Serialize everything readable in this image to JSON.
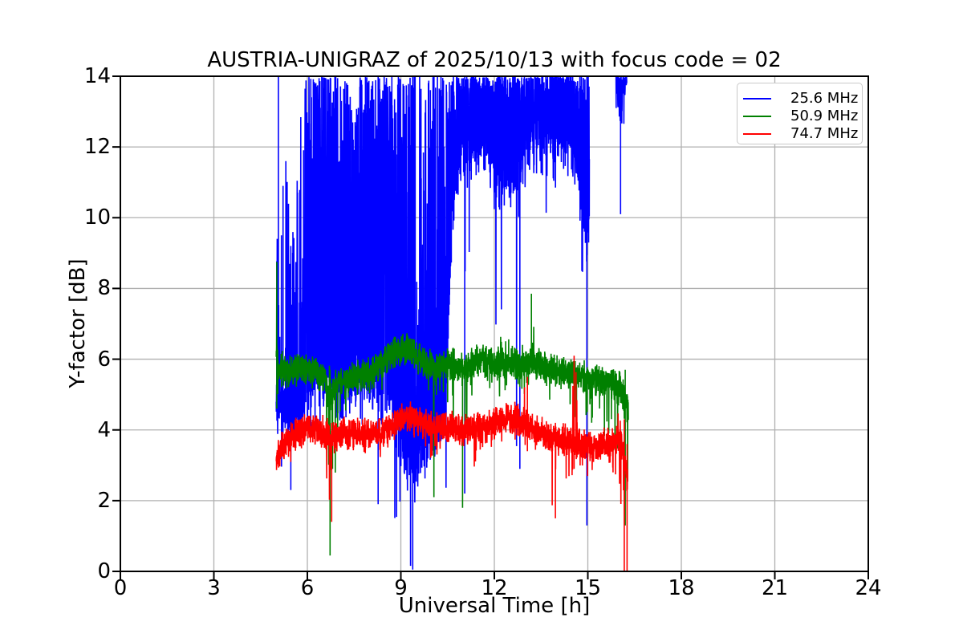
{
  "chart_data": {
    "type": "line",
    "title": "AUSTRIA-UNIGRAZ of 2025/10/13 with focus code = 02",
    "xlabel": "Universal Time [h]",
    "ylabel": "Y-factor [dB]",
    "xlim": [
      0,
      24
    ],
    "ylim": [
      0,
      14
    ],
    "xticks": [
      0,
      3,
      6,
      9,
      12,
      15,
      18,
      21,
      24
    ],
    "yticks": [
      0,
      2,
      4,
      6,
      8,
      10,
      12,
      14
    ],
    "grid": true,
    "grid_color": "#b0b0b0",
    "axis_color": "#000000",
    "legend": {
      "position": "upper right",
      "items": [
        {
          "label": "25.6 MHz",
          "color": "#0000ff"
        },
        {
          "label": "50.9 MHz",
          "color": "#008000"
        },
        {
          "label": "74.7 MHz",
          "color": "#ff0000"
        }
      ]
    },
    "series_encoding": {
      "cp": "[time_h, envelope_low_dB, median_dB, envelope_high_dB, high_peg_fraction]",
      "spike": "[time_h, dB_from, dB_to]",
      "note": "noisy 1-s data summarized as piecewise-linear envelopes; parts are contiguous data segments separated by gaps"
    },
    "series": [
      {
        "name": "25.6 MHz",
        "color": "#0000ff",
        "mode": "peg",
        "jitter": 1.0,
        "seed": 101,
        "parts": [
          [
            [
              5.0,
              4.3,
              4.9,
              5.8,
              0.0
            ],
            [
              5.05,
              4.3,
              4.8,
              14.0,
              0.1
            ],
            [
              5.15,
              2.3,
              4.6,
              11.0,
              0.14
            ],
            [
              5.3,
              2.3,
              4.4,
              11.7,
              0.16
            ],
            [
              5.5,
              3.0,
              4.3,
              9.5,
              0.14
            ],
            [
              5.7,
              3.3,
              4.6,
              12.5,
              0.3
            ],
            [
              5.9,
              3.5,
              4.8,
              14.0,
              0.45
            ],
            [
              6.1,
              3.8,
              5.2,
              14.0,
              0.65
            ],
            [
              6.4,
              3.3,
              5.4,
              14.0,
              0.72
            ],
            [
              6.7,
              2.8,
              5.3,
              14.0,
              0.7
            ],
            [
              7.0,
              3.0,
              5.0,
              14.0,
              0.6
            ],
            [
              7.3,
              3.8,
              5.2,
              14.0,
              0.5
            ],
            [
              7.5,
              4.2,
              5.4,
              12.5,
              0.4
            ],
            [
              7.7,
              4.0,
              5.4,
              14.0,
              0.55
            ],
            [
              8.0,
              3.2,
              5.3,
              14.0,
              0.65
            ],
            [
              8.25,
              1.9,
              5.0,
              14.0,
              0.6
            ],
            [
              8.6,
              2.5,
              5.0,
              14.0,
              0.7
            ],
            [
              8.9,
              1.0,
              4.2,
              14.0,
              0.55
            ],
            [
              9.1,
              0.4,
              3.6,
              14.0,
              0.45
            ],
            [
              9.35,
              0.05,
              3.2,
              14.0,
              0.38
            ],
            [
              9.6,
              1.2,
              3.3,
              14.0,
              0.32
            ],
            [
              9.9,
              1.3,
              3.6,
              14.0,
              0.35
            ],
            [
              10.15,
              1.6,
              3.9,
              14.0,
              0.42
            ],
            [
              10.45,
              2.0,
              4.8,
              14.0,
              0.5
            ],
            [
              10.65,
              4.3,
              10.0,
              14.0,
              0.75
            ],
            [
              10.85,
              5.0,
              11.2,
              14.0,
              0.82
            ],
            [
              11.05,
              2.2,
              11.3,
              14.0,
              0.8
            ],
            [
              11.4,
              6.5,
              11.8,
              14.0,
              0.85
            ],
            [
              11.7,
              7.5,
              12.0,
              14.0,
              0.83
            ],
            [
              11.9,
              7.3,
              11.6,
              14.0,
              0.62
            ],
            [
              12.2,
              6.4,
              11.0,
              14.0,
              0.55
            ],
            [
              12.5,
              5.0,
              11.0,
              14.0,
              0.65
            ],
            [
              12.8,
              2.9,
              11.2,
              14.0,
              0.78
            ],
            [
              13.1,
              6.0,
              11.5,
              14.0,
              0.8
            ],
            [
              13.4,
              8.0,
              12.0,
              14.0,
              0.85
            ],
            [
              13.8,
              6.0,
              11.6,
              14.0,
              0.82
            ],
            [
              14.2,
              7.0,
              11.8,
              14.0,
              0.84
            ],
            [
              14.45,
              7.9,
              11.8,
              14.0,
              0.83
            ],
            [
              14.7,
              4.5,
              11.0,
              14.0,
              0.78
            ],
            [
              14.95,
              1.3,
              9.5,
              14.0,
              0.65
            ],
            [
              15.05,
              5.0,
              10.0,
              14.0,
              0.6
            ]
          ],
          [
            [
              15.9,
              12.2,
              13.4,
              14.0,
              0.8
            ],
            [
              16.0,
              10.1,
              13.0,
              14.0,
              0.72
            ],
            [
              16.1,
              11.8,
              13.4,
              14.0,
              0.8
            ],
            [
              16.25,
              12.4,
              13.7,
              14.0,
              0.85
            ]
          ]
        ],
        "spikes": [
          [
            5.07,
            4.5,
            14.0
          ],
          [
            5.22,
            4.2,
            10.9
          ],
          [
            5.31,
            4.3,
            11.6
          ],
          [
            5.47,
            2.3,
            9.2
          ],
          [
            8.27,
            1.9,
            14.0
          ],
          [
            9.38,
            0.05,
            14.0
          ],
          [
            11.05,
            2.2,
            14.0
          ],
          [
            12.82,
            2.9,
            13.0
          ],
          [
            14.97,
            1.3,
            14.0
          ],
          [
            16.05,
            10.1,
            14.0
          ]
        ]
      },
      {
        "name": "50.9 MHz",
        "color": "#008000",
        "mode": "band",
        "jitter": 0.5,
        "seed": 202,
        "parts": [
          [
            [
              5.0,
              4.6,
              6.2,
              8.8,
              0
            ],
            [
              5.08,
              5.1,
              5.7,
              6.3,
              0
            ],
            [
              5.4,
              5.2,
              5.65,
              6.2,
              0
            ],
            [
              5.8,
              5.3,
              5.75,
              6.3,
              0
            ],
            [
              6.2,
              5.2,
              5.65,
              6.1,
              0
            ],
            [
              6.55,
              4.9,
              5.5,
              6.0,
              0
            ],
            [
              6.72,
              0.5,
              4.8,
              5.9,
              0
            ],
            [
              6.85,
              2.2,
              5.2,
              5.9,
              0
            ],
            [
              7.0,
              3.0,
              5.4,
              5.9,
              0
            ],
            [
              7.3,
              4.9,
              5.45,
              5.95,
              0
            ],
            [
              7.7,
              5.0,
              5.5,
              6.0,
              0
            ],
            [
              8.1,
              4.2,
              5.7,
              6.2,
              0
            ],
            [
              8.5,
              5.4,
              6.0,
              6.5,
              0
            ],
            [
              8.9,
              5.8,
              6.25,
              6.7,
              0
            ],
            [
              9.2,
              5.8,
              6.3,
              6.75,
              0
            ],
            [
              9.5,
              5.5,
              6.1,
              6.6,
              0
            ],
            [
              9.8,
              5.0,
              5.9,
              6.4,
              0
            ],
            [
              10.05,
              2.1,
              5.75,
              6.3,
              0
            ],
            [
              10.3,
              4.4,
              5.8,
              6.3,
              0
            ],
            [
              10.6,
              4.6,
              5.85,
              6.4,
              0
            ],
            [
              10.95,
              1.8,
              5.7,
              6.3,
              0
            ],
            [
              11.2,
              4.8,
              5.85,
              6.4,
              0
            ],
            [
              11.6,
              5.2,
              5.95,
              6.5,
              0
            ],
            [
              11.95,
              5.1,
              5.9,
              6.6,
              0
            ],
            [
              12.25,
              4.2,
              5.9,
              6.9,
              0
            ],
            [
              12.6,
              5.2,
              5.95,
              6.6,
              0
            ],
            [
              12.95,
              5.0,
              5.9,
              6.7,
              0
            ],
            [
              13.18,
              5.2,
              6.0,
              7.9,
              0
            ],
            [
              13.4,
              5.1,
              5.85,
              6.4,
              0
            ],
            [
              13.75,
              4.8,
              5.7,
              6.2,
              0
            ],
            [
              14.1,
              4.6,
              5.65,
              6.1,
              0
            ],
            [
              14.5,
              4.3,
              5.55,
              6.05,
              0
            ],
            [
              14.9,
              4.2,
              5.5,
              6.0,
              0
            ],
            [
              15.3,
              3.8,
              5.4,
              5.95,
              0
            ],
            [
              15.7,
              3.4,
              5.35,
              5.9,
              0
            ],
            [
              16.0,
              2.6,
              5.2,
              5.9,
              0
            ],
            [
              16.18,
              1.3,
              4.9,
              5.8,
              0
            ],
            [
              16.3,
              2.8,
              4.6,
              5.6,
              0
            ]
          ]
        ],
        "spikes": [
          [
            5.02,
            4.6,
            8.75
          ],
          [
            6.73,
            0.45,
            5.7
          ],
          [
            10.06,
            2.1,
            6.0
          ],
          [
            10.98,
            1.8,
            6.0
          ],
          [
            13.19,
            5.6,
            7.85
          ],
          [
            16.2,
            1.3,
            5.7
          ]
        ]
      },
      {
        "name": "74.7 MHz",
        "color": "#ff0000",
        "mode": "band",
        "jitter": 0.5,
        "seed": 303,
        "parts": [
          [
            [
              5.0,
              2.6,
              3.2,
              3.8,
              0
            ],
            [
              5.2,
              2.8,
              3.5,
              4.0,
              0
            ],
            [
              5.5,
              3.1,
              3.8,
              4.3,
              0
            ],
            [
              5.85,
              3.4,
              4.0,
              4.45,
              0
            ],
            [
              6.2,
              3.5,
              4.05,
              4.5,
              0
            ],
            [
              6.5,
              3.3,
              3.95,
              4.4,
              0
            ],
            [
              6.75,
              1.4,
              3.7,
              4.3,
              0
            ],
            [
              6.95,
              2.6,
              3.85,
              4.3,
              0
            ],
            [
              7.2,
              3.4,
              3.95,
              4.4,
              0
            ],
            [
              7.6,
              3.4,
              3.9,
              4.35,
              0
            ],
            [
              8.0,
              3.3,
              3.85,
              4.3,
              0
            ],
            [
              8.4,
              3.2,
              3.9,
              4.4,
              0
            ],
            [
              8.8,
              3.6,
              4.2,
              4.6,
              0
            ],
            [
              9.15,
              3.9,
              4.45,
              4.9,
              0
            ],
            [
              9.45,
              3.7,
              4.3,
              4.75,
              0
            ],
            [
              9.8,
              3.3,
              4.15,
              4.6,
              0
            ],
            [
              10.1,
              2.7,
              4.05,
              4.5,
              0
            ],
            [
              10.5,
              3.4,
              4.1,
              4.5,
              0
            ],
            [
              10.9,
              3.2,
              4.05,
              4.5,
              0
            ],
            [
              11.2,
              2.4,
              4.0,
              4.5,
              0
            ],
            [
              11.6,
              3.4,
              4.05,
              4.55,
              0
            ],
            [
              12.0,
              3.5,
              4.15,
              4.6,
              0
            ],
            [
              12.4,
              3.7,
              4.35,
              4.8,
              0
            ],
            [
              12.8,
              3.6,
              4.3,
              4.75,
              0
            ],
            [
              13.05,
              3.2,
              4.15,
              5.5,
              0
            ],
            [
              13.35,
              3.0,
              4.0,
              4.5,
              0
            ],
            [
              13.65,
              2.5,
              3.85,
              4.4,
              0
            ],
            [
              13.95,
              1.5,
              3.7,
              4.3,
              0
            ],
            [
              14.25,
              2.7,
              3.7,
              4.2,
              0
            ],
            [
              14.55,
              2.1,
              3.65,
              6.1,
              0
            ],
            [
              14.85,
              2.4,
              3.6,
              4.2,
              0
            ],
            [
              15.15,
              2.6,
              3.55,
              4.15,
              0
            ],
            [
              15.5,
              2.7,
              3.6,
              4.3,
              0
            ],
            [
              15.8,
              2.8,
              3.7,
              4.45,
              0
            ],
            [
              16.05,
              2.0,
              3.8,
              4.6,
              0
            ],
            [
              16.15,
              0.0,
              3.2,
              4.4,
              0
            ],
            [
              16.28,
              0.0,
              2.5,
              4.0,
              0
            ]
          ]
        ],
        "spikes": [
          [
            6.78,
            1.4,
            4.2
          ],
          [
            13.06,
            3.4,
            5.5
          ],
          [
            13.96,
            1.5,
            4.2
          ],
          [
            14.56,
            2.9,
            6.1
          ],
          [
            16.17,
            0.0,
            4.3
          ],
          [
            16.26,
            0.0,
            3.6
          ]
        ]
      }
    ]
  }
}
